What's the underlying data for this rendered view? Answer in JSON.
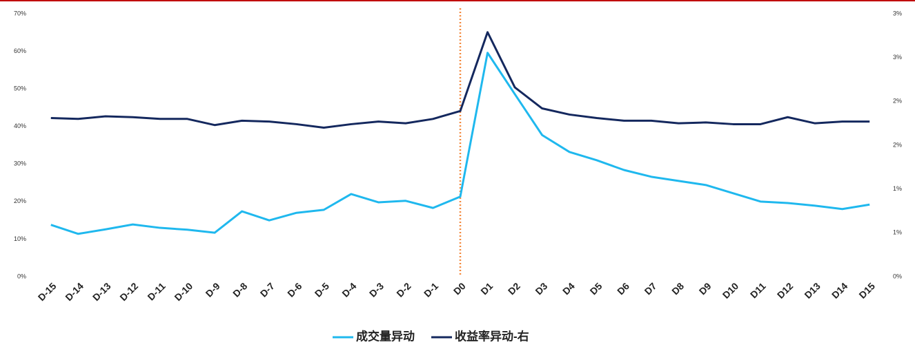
{
  "chart_data": {
    "type": "line",
    "categories": [
      "D-15",
      "D-14",
      "D-13",
      "D-12",
      "D-11",
      "D-10",
      "D-9",
      "D-8",
      "D-7",
      "D-6",
      "D-5",
      "D-4",
      "D-3",
      "D-2",
      "D-1",
      "D0",
      "D1",
      "D2",
      "D3",
      "D4",
      "D5",
      "D6",
      "D7",
      "D8",
      "D9",
      "D10",
      "D11",
      "D12",
      "D13",
      "D14",
      "D15"
    ],
    "series": [
      {
        "name": "成交量异动",
        "color": "#1fb8ee",
        "axis": "y",
        "values": [
          13.8,
          11.4,
          12.6,
          13.9,
          13.0,
          12.5,
          11.7,
          17.4,
          15.0,
          17.0,
          17.8,
          22.0,
          19.8,
          20.2,
          18.3,
          21.3,
          59.6,
          48.6,
          37.7,
          33.2,
          31.0,
          28.4,
          26.6,
          25.5,
          24.4,
          22.2,
          20.0,
          19.6,
          18.9,
          18.0,
          19.2
        ]
      },
      {
        "name": "收益率异动-右",
        "color": "#14285e",
        "axis": "y2",
        "values": [
          1.81,
          1.8,
          1.83,
          1.82,
          1.8,
          1.8,
          1.73,
          1.78,
          1.77,
          1.74,
          1.7,
          1.74,
          1.77,
          1.75,
          1.8,
          1.89,
          2.79,
          2.16,
          1.92,
          1.85,
          1.81,
          1.78,
          1.78,
          1.75,
          1.76,
          1.74,
          1.74,
          1.82,
          1.75,
          1.77,
          1.77
        ]
      }
    ],
    "ylim": [
      0,
      70
    ],
    "yticks": [
      {
        "value": 0,
        "label": "0%"
      },
      {
        "value": 10,
        "label": "10%"
      },
      {
        "value": 20,
        "label": "20%"
      },
      {
        "value": 30,
        "label": "30%"
      },
      {
        "value": 40,
        "label": "40%"
      },
      {
        "value": 50,
        "label": "50%"
      },
      {
        "value": 60,
        "label": "60%"
      },
      {
        "value": 70,
        "label": "70%"
      }
    ],
    "y2lim": [
      0,
      3
    ],
    "y2ticks": [
      {
        "value": 0,
        "label": "0%"
      },
      {
        "value": 0.5,
        "label": "1%"
      },
      {
        "value": 1,
        "label": "1%"
      },
      {
        "value": 1.5,
        "label": "2%"
      },
      {
        "value": 2,
        "label": "2%"
      },
      {
        "value": 2.5,
        "label": "3%"
      },
      {
        "value": 3,
        "label": "3%"
      }
    ],
    "reference_line": {
      "category": "D0",
      "color": "#f4873a"
    },
    "grid": false,
    "legend": "bottom"
  }
}
